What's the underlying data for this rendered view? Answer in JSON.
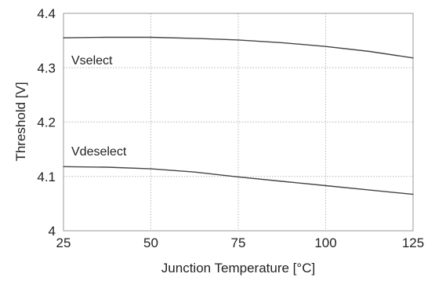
{
  "chart_data": {
    "type": "line",
    "title": "",
    "xlabel": "Junction Temperature [°C]",
    "ylabel": "Threshold [V]",
    "xlim": [
      25,
      125
    ],
    "ylim": [
      4.0,
      4.4
    ],
    "xticks": [
      {
        "value": 25,
        "label": "25"
      },
      {
        "value": 50,
        "label": "50"
      },
      {
        "value": 75,
        "label": "75"
      },
      {
        "value": 100,
        "label": "100"
      },
      {
        "value": 125,
        "label": "125"
      }
    ],
    "yticks": [
      {
        "value": 4.0,
        "label": "4"
      },
      {
        "value": 4.1,
        "label": "4.1"
      },
      {
        "value": 4.2,
        "label": "4.2"
      },
      {
        "value": 4.3,
        "label": "4.3"
      },
      {
        "value": 4.4,
        "label": "4.4"
      }
    ],
    "grid": true,
    "series": [
      {
        "name": "Vselect",
        "x": [
          25,
          37.5,
          50,
          62.5,
          75,
          87.5,
          100,
          112.5,
          125
        ],
        "y": [
          4.355,
          4.356,
          4.356,
          4.354,
          4.351,
          4.346,
          4.339,
          4.33,
          4.318
        ],
        "color": "#444444"
      },
      {
        "name": "Vdeselect",
        "x": [
          25,
          37.5,
          50,
          62.5,
          75,
          87.5,
          100,
          112.5,
          125
        ],
        "y": [
          4.118,
          4.117,
          4.114,
          4.108,
          4.099,
          4.091,
          4.083,
          4.075,
          4.067
        ],
        "color": "#444444"
      }
    ]
  }
}
